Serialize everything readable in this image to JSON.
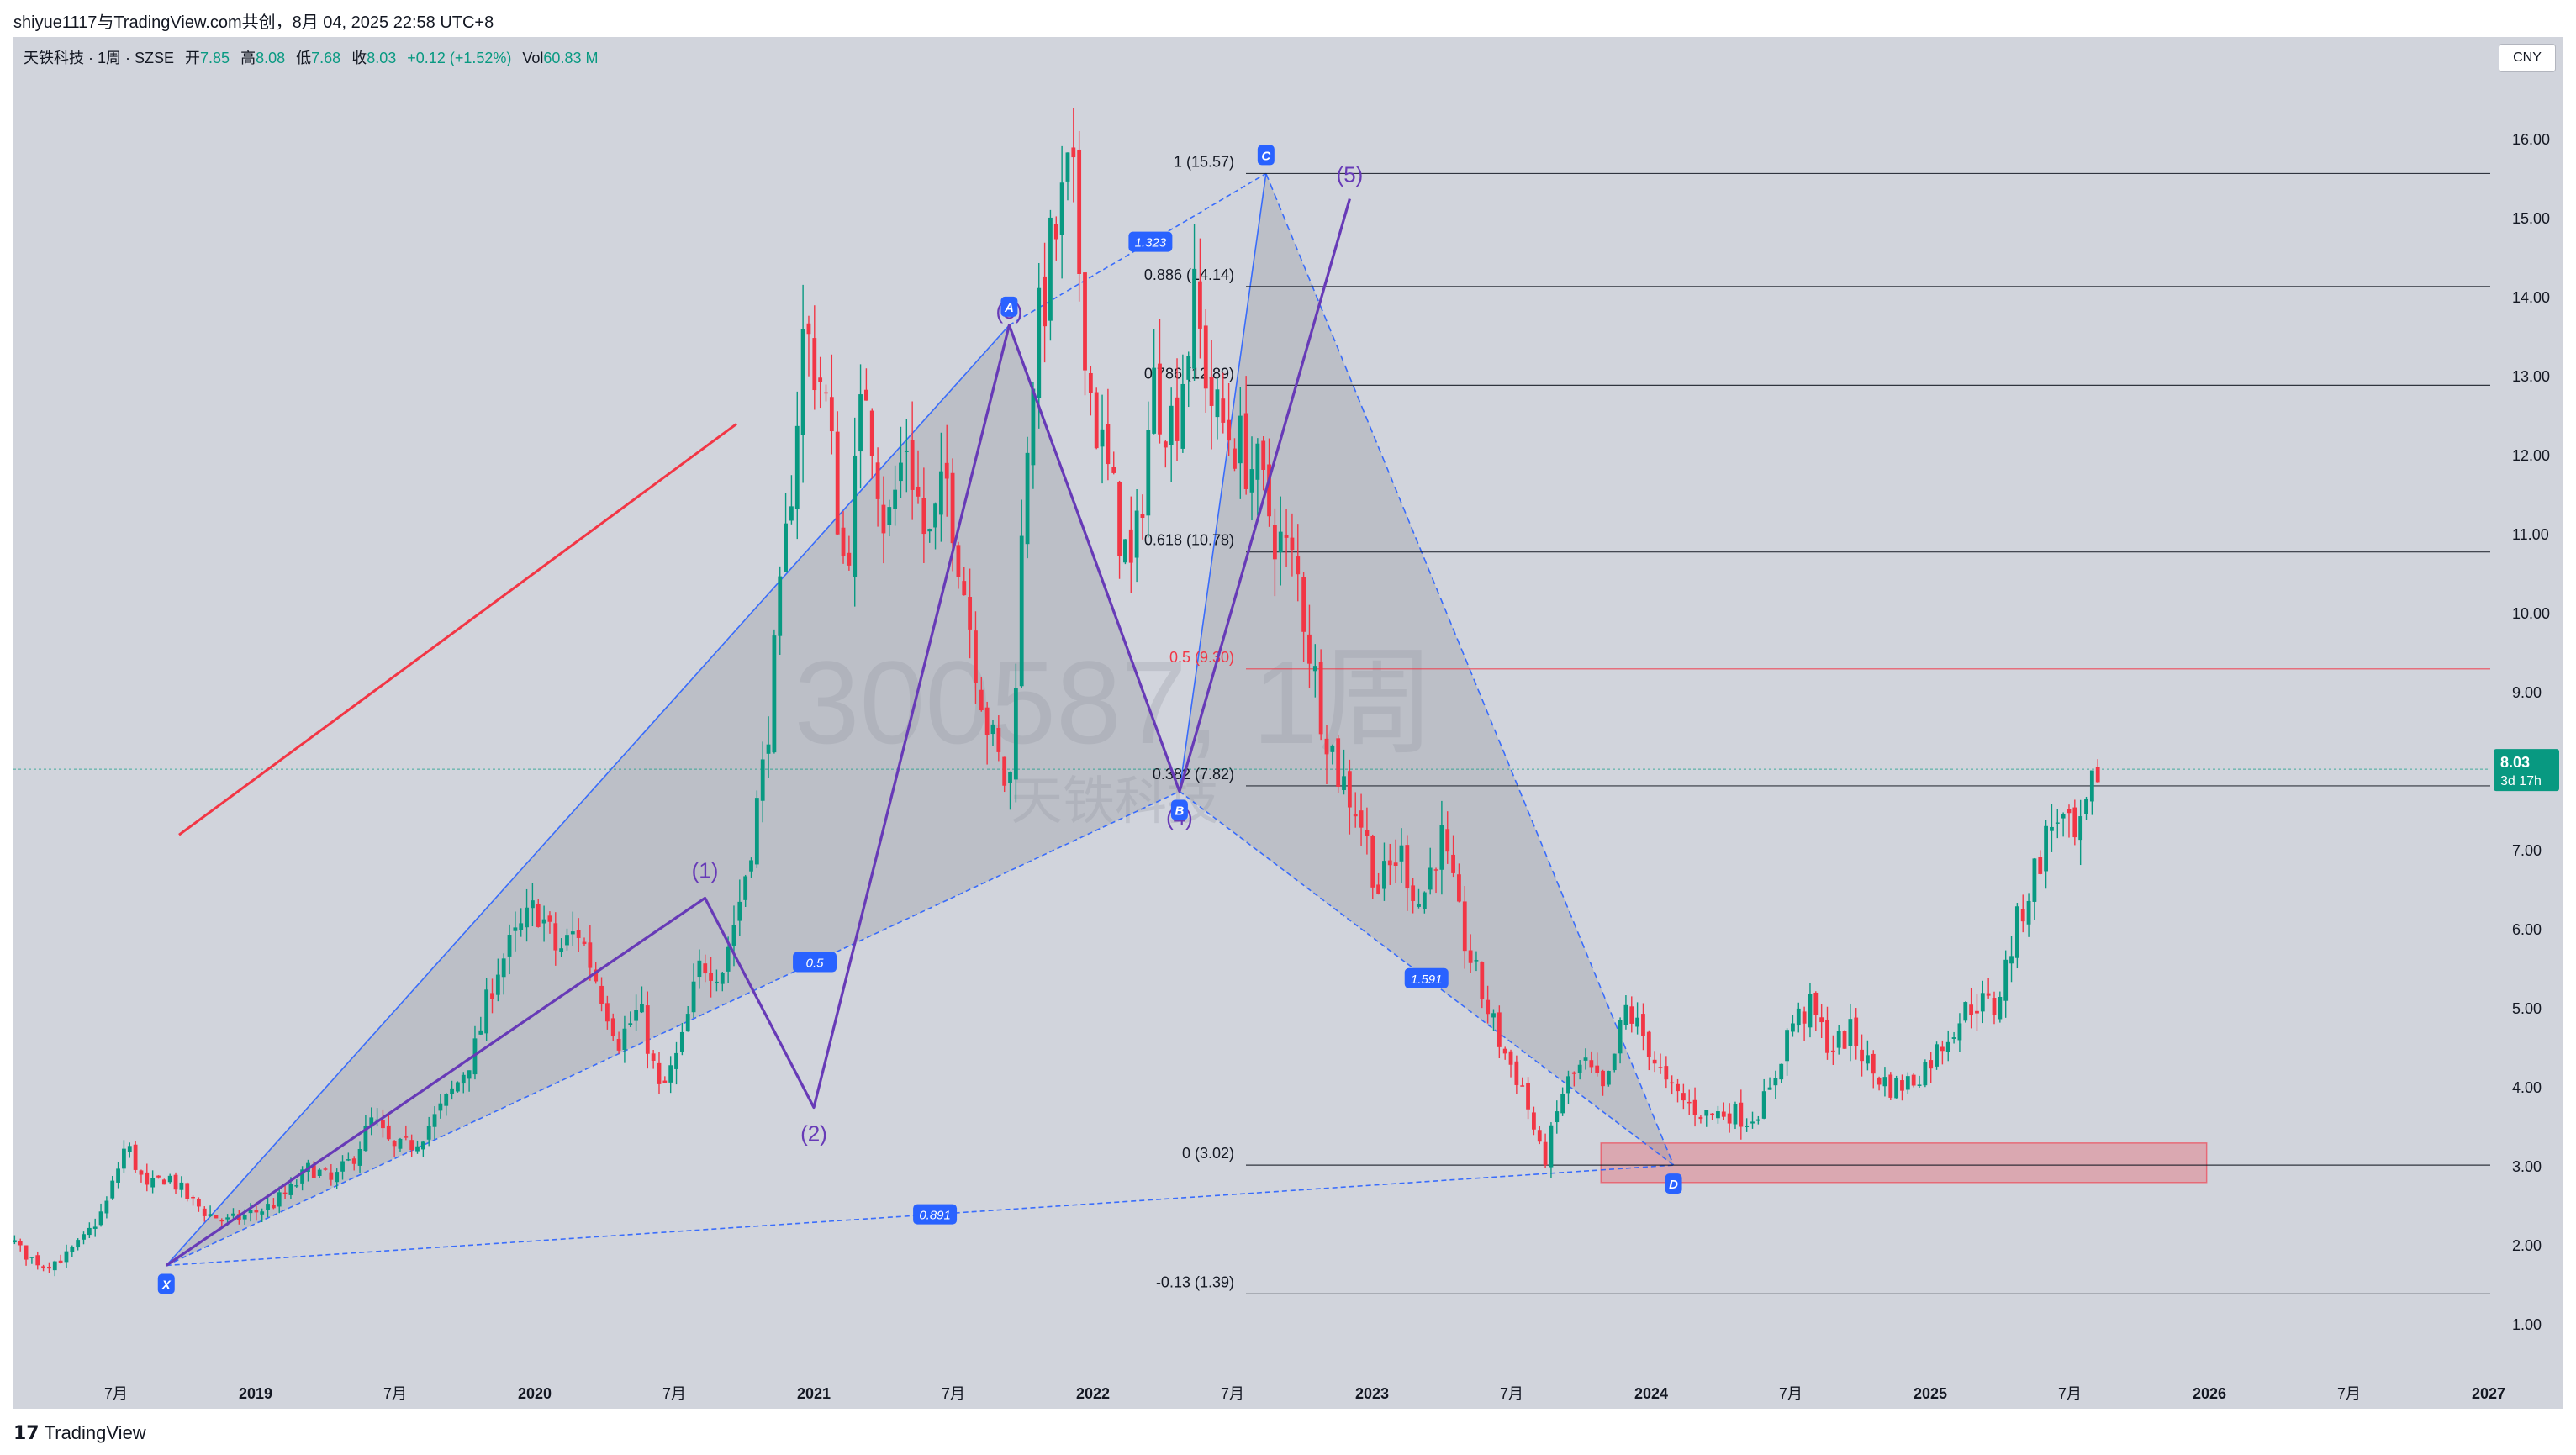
{
  "header": {
    "share_text": "shiyue1117与TradingView.com共创，8月 04, 2025 22:58 UTC+8",
    "currency": "CNY"
  },
  "legend": {
    "symbol": "天铁科技 · 1周 · SZSE",
    "open_label": "开",
    "open": "7.85",
    "high_label": "高",
    "high": "8.08",
    "low_label": "低",
    "low": "7.68",
    "close_label": "收",
    "close": "8.03",
    "change": "+0.12 (+1.52%)",
    "vol_label": "Vol",
    "vol": "60.83 M"
  },
  "watermark": {
    "line1": "300587, 1周",
    "line2": "天铁科技"
  },
  "brand": {
    "name": "TradingView"
  },
  "colors": {
    "up": "#089981",
    "down": "#f23645",
    "pattern": "#2962ff",
    "elliott": "#673ab7",
    "fib_line": "#131722"
  },
  "chart_data": {
    "type": "candlestick",
    "symbol": "300587",
    "interval": "1周",
    "ylim": [
      0.6,
      17.2
    ],
    "y_ticks": [
      "1.00",
      "2.00",
      "3.00",
      "4.00",
      "5.00",
      "6.00",
      "7.00",
      "8.00",
      "9.00",
      "10.00",
      "11.00",
      "12.00",
      "13.00",
      "14.00",
      "15.00",
      "16.00"
    ],
    "x_ticks": [
      "7月",
      "2019",
      "7月",
      "2020",
      "7月",
      "2021",
      "7月",
      "2022",
      "7月",
      "2023",
      "7月",
      "2024",
      "7月",
      "2025",
      "7月",
      "2026",
      "7月",
      "2027"
    ],
    "last_price": "8.03",
    "countdown": "3d 17h",
    "candle_path": [
      2.7,
      2.6,
      2.8,
      2.5,
      2.3,
      2.1,
      2.0,
      2.2,
      1.9,
      1.75,
      1.85,
      2.1,
      2.5,
      3.3,
      2.7,
      2.9,
      2.6,
      2.4,
      2.3,
      2.4,
      2.5,
      2.7,
      3.0,
      2.8,
      3.1,
      3.6,
      3.2,
      3.3,
      3.6,
      4.0,
      4.5,
      5.5,
      5.9,
      6.3,
      5.7,
      6.0,
      5.3,
      4.6,
      5.0,
      3.9,
      4.5,
      5.6,
      5.5,
      6.5,
      8.0,
      10.5,
      13.6,
      12.8,
      10.5,
      13.0,
      11.0,
      12.2,
      10.8,
      11.7,
      10.0,
      8.5,
      7.7,
      12.9,
      14.5,
      15.57,
      12.7,
      11.5,
      10.4,
      12.9,
      12.4,
      13.9,
      12.5,
      12.2,
      11.8,
      11.0,
      10.5,
      9.0,
      8.0,
      7.5,
      6.5,
      7.0,
      6.3,
      7.2,
      6.0,
      5.2,
      4.5,
      4.0,
      3.02,
      4.0,
      4.3,
      3.9,
      5.0,
      4.6,
      4.0,
      3.8,
      3.65,
      3.7,
      3.6,
      3.9,
      4.8,
      5.0,
      4.5,
      4.7,
      4.2,
      4.0,
      4.1,
      4.4,
      4.8,
      5.1,
      5.0,
      6.0,
      6.8,
      7.5,
      7.0,
      8.03
    ],
    "fib_levels": [
      {
        "label": "1 (15.57)",
        "price": 15.57
      },
      {
        "label": "0.886 (14.14)",
        "price": 14.14
      },
      {
        "label": "0.786 (12.89)",
        "price": 12.89
      },
      {
        "label": "0.618 (10.78)",
        "price": 10.78
      },
      {
        "label": "0.5 (9.30)",
        "price": 9.3
      },
      {
        "label": "0.382 (7.82)",
        "price": 7.82
      },
      {
        "label": "0 (3.02)",
        "price": 3.02
      },
      {
        "label": "-0.13 (1.39)",
        "price": 1.39
      }
    ],
    "harmonic_points": [
      {
        "label": "X",
        "time": 2018.68,
        "price": 1.75
      },
      {
        "label": "A",
        "time": 2021.7,
        "price": 13.65
      },
      {
        "label": "B",
        "time": 2022.31,
        "price": 7.75
      },
      {
        "label": "C",
        "time": 2022.62,
        "price": 15.57
      },
      {
        "label": "D",
        "time": 2024.08,
        "price": 3.02
      }
    ],
    "harmonic_ratios": [
      "0.5",
      "1.323",
      "1.591",
      "0.891"
    ],
    "elliott_waves": [
      {
        "label": "(1)",
        "time": 2020.61,
        "price": 6.4
      },
      {
        "label": "(2)",
        "time": 2021.0,
        "price": 3.75
      },
      {
        "label": "(3)",
        "time": 2021.7,
        "price": 13.65
      },
      {
        "label": "(4)",
        "time": 2022.31,
        "price": 7.75
      },
      {
        "label": "(5)",
        "time": 2022.92,
        "price": 15.25
      }
    ],
    "support_zone": {
      "price_low": 2.8,
      "price_high": 3.3,
      "time_start": 2023.82,
      "time_end": 2025.99
    }
  }
}
